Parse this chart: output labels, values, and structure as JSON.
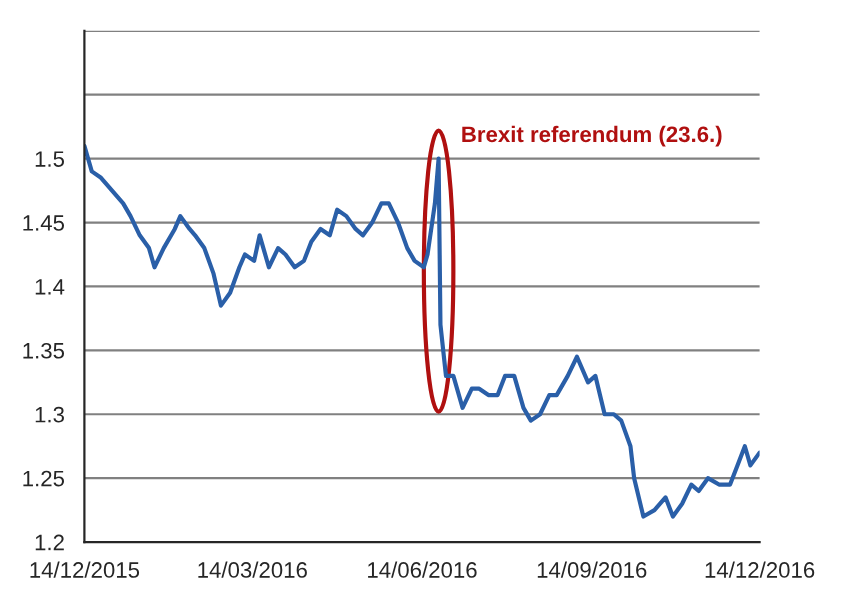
{
  "chart_data": {
    "type": "line",
    "x": [
      "2015-12-14",
      "2015-12-18",
      "2015-12-23",
      "2015-12-29",
      "2016-01-04",
      "2016-01-08",
      "2016-01-13",
      "2016-01-18",
      "2016-01-21",
      "2016-01-26",
      "2016-02-01",
      "2016-02-04",
      "2016-02-09",
      "2016-02-12",
      "2016-02-17",
      "2016-02-22",
      "2016-02-26",
      "2016-03-02",
      "2016-03-07",
      "2016-03-10",
      "2016-03-15",
      "2016-03-18",
      "2016-03-23",
      "2016-03-28",
      "2016-04-01",
      "2016-04-06",
      "2016-04-11",
      "2016-04-15",
      "2016-04-20",
      "2016-04-25",
      "2016-04-29",
      "2016-05-04",
      "2016-05-09",
      "2016-05-13",
      "2016-05-18",
      "2016-05-23",
      "2016-05-27",
      "2016-06-01",
      "2016-06-06",
      "2016-06-10",
      "2016-06-15",
      "2016-06-17",
      "2016-06-21",
      "2016-06-23",
      "2016-06-24",
      "2016-06-27",
      "2016-07-01",
      "2016-07-06",
      "2016-07-11",
      "2016-07-15",
      "2016-07-20",
      "2016-07-25",
      "2016-07-29",
      "2016-08-03",
      "2016-08-08",
      "2016-08-12",
      "2016-08-17",
      "2016-08-22",
      "2016-08-26",
      "2016-09-01",
      "2016-09-06",
      "2016-09-12",
      "2016-09-16",
      "2016-09-21",
      "2016-09-26",
      "2016-09-30",
      "2016-10-05",
      "2016-10-07",
      "2016-10-12",
      "2016-10-18",
      "2016-10-24",
      "2016-10-28",
      "2016-11-02",
      "2016-11-07",
      "2016-11-11",
      "2016-11-16",
      "2016-11-22",
      "2016-11-28",
      "2016-12-02",
      "2016-12-06",
      "2016-12-09",
      "2016-12-14"
    ],
    "series": [
      {
        "color": "#2a5fa8",
        "values": [
          1.51,
          1.49,
          1.485,
          1.475,
          1.465,
          1.455,
          1.44,
          1.43,
          1.415,
          1.43,
          1.445,
          1.455,
          1.445,
          1.44,
          1.43,
          1.41,
          1.385,
          1.395,
          1.415,
          1.425,
          1.42,
          1.44,
          1.415,
          1.43,
          1.425,
          1.415,
          1.42,
          1.435,
          1.445,
          1.44,
          1.46,
          1.455,
          1.445,
          1.44,
          1.45,
          1.465,
          1.465,
          1.45,
          1.43,
          1.42,
          1.415,
          1.425,
          1.465,
          1.5,
          1.37,
          1.33,
          1.33,
          1.305,
          1.32,
          1.32,
          1.315,
          1.315,
          1.33,
          1.33,
          1.305,
          1.295,
          1.3,
          1.315,
          1.315,
          1.33,
          1.345,
          1.325,
          1.33,
          1.3,
          1.3,
          1.295,
          1.275,
          1.25,
          1.22,
          1.225,
          1.235,
          1.22,
          1.23,
          1.245,
          1.24,
          1.25,
          1.245,
          1.245,
          1.26,
          1.275,
          1.26,
          1.27
        ]
      }
    ],
    "xlim": [
      "2015-12-14",
      "2016-12-14"
    ],
    "xticks": [
      {
        "value": "2015-12-14",
        "label": "14/12/2015"
      },
      {
        "value": "2016-03-14",
        "label": "14/03/2016"
      },
      {
        "value": "2016-06-14",
        "label": "14/06/2016"
      },
      {
        "value": "2016-09-14",
        "label": "14/09/2016"
      },
      {
        "value": "2016-12-14",
        "label": "14/12/2016"
      }
    ],
    "ylim": [
      1.2,
      1.6
    ],
    "yticks": [
      1.2,
      1.25,
      1.3,
      1.35,
      1.4,
      1.45,
      1.5,
      {
        "value": 1.55,
        "label": null
      },
      {
        "value": 1.6,
        "label": null
      }
    ],
    "grid": "y",
    "annotations": [
      {
        "text": "Brexit referendum (23.6.)",
        "x": "2016-06-23",
        "y": 1.5
      }
    ]
  }
}
